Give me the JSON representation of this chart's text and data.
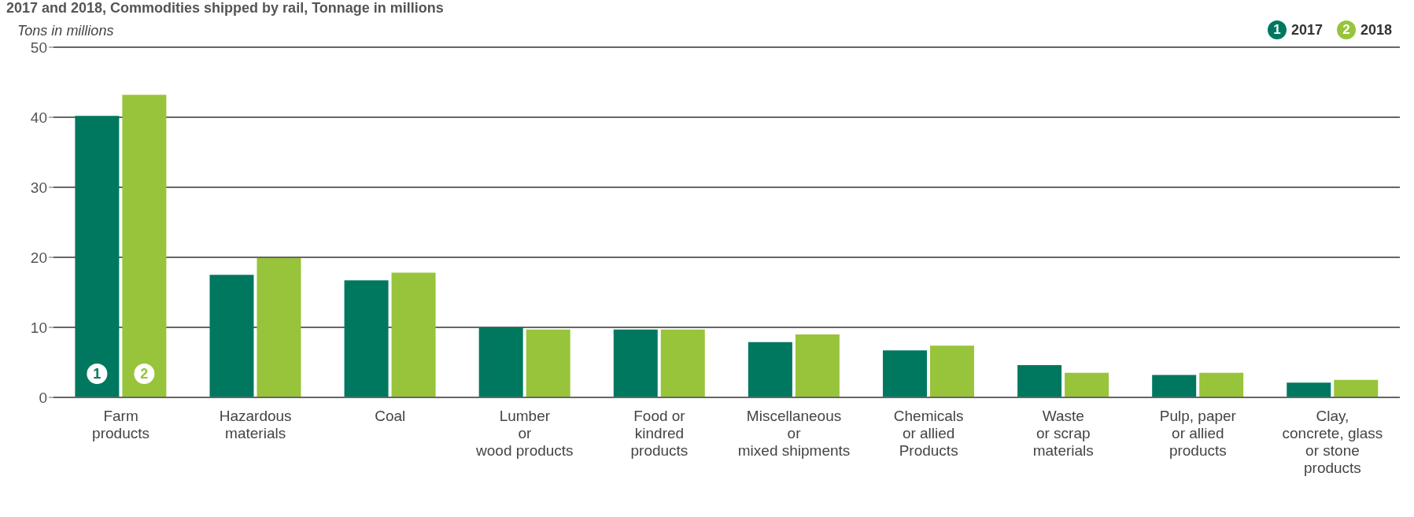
{
  "chart_data": {
    "type": "bar",
    "title": "2017 and 2018, Commodities shipped by rail, Tonnage in millions",
    "ylabel": "Tons in millions",
    "categories": [
      "Farm\nproducts",
      "Hazardous\nmaterials",
      "Coal",
      "Lumber\nor\nwood products",
      "Food or\nkindred\nproducts",
      "Miscellaneous\nor\nmixed shipments",
      "Chemicals\nor allied\nProducts",
      "Waste\nor scrap\nmaterials",
      "Pulp, paper\nor allied\nproducts",
      "Clay,\nconcrete, glass\nor stone\nproducts"
    ],
    "series": [
      {
        "name": "2017",
        "color": "#00785f",
        "values": [
          40.2,
          17.5,
          16.7,
          10.0,
          9.7,
          7.9,
          6.7,
          4.6,
          3.2,
          2.1
        ]
      },
      {
        "name": "2018",
        "color": "#97c43b",
        "values": [
          43.2,
          19.9,
          17.8,
          9.7,
          9.7,
          9.0,
          7.4,
          3.5,
          3.5,
          2.5
        ]
      }
    ],
    "ylim": [
      0,
      50
    ],
    "yticks": [
      0,
      10,
      20,
      30,
      40,
      50
    ],
    "grid": "y",
    "legend": "top right",
    "annotations": [
      "1",
      "2"
    ]
  }
}
